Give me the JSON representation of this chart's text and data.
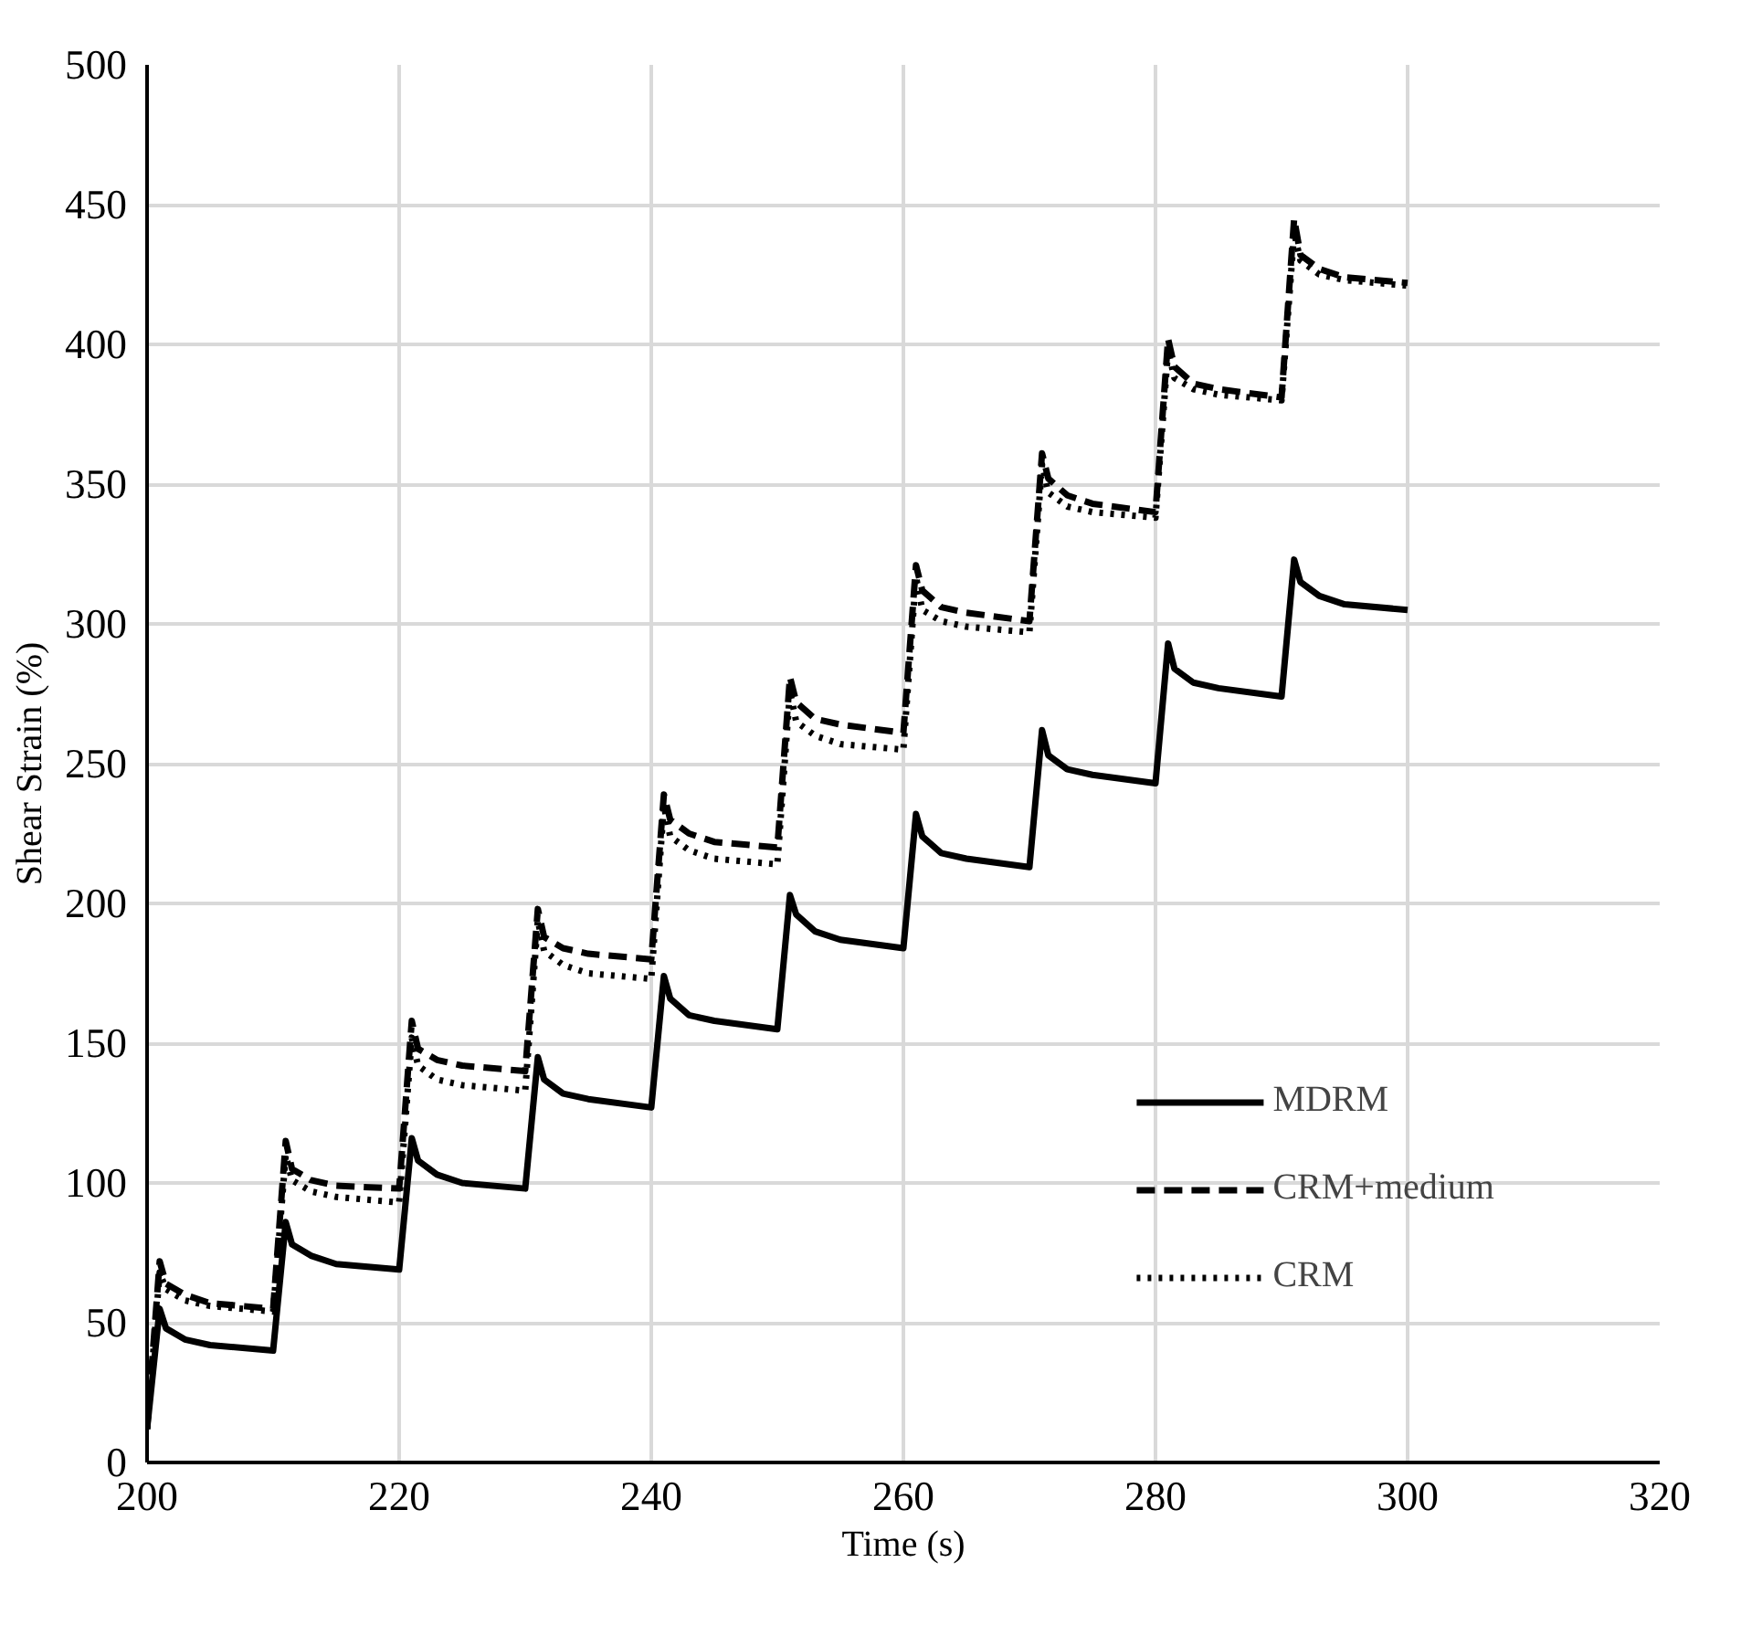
{
  "chart_data": {
    "type": "line",
    "xlabel": "Time (s)",
    "ylabel": "Shear Strain (%)",
    "x": [
      200,
      201,
      201.5,
      203,
      205,
      210,
      211,
      211.5,
      213,
      215,
      220,
      221,
      221.5,
      223,
      225,
      230,
      231,
      231.5,
      233,
      235,
      240,
      241,
      241.5,
      243,
      245,
      250,
      251,
      251.5,
      253,
      255,
      260,
      261,
      261.5,
      263,
      265,
      270,
      271,
      271.5,
      273,
      275,
      280,
      281,
      281.5,
      283,
      285,
      290,
      291,
      291.5,
      293,
      295,
      300
    ],
    "series": [
      {
        "name": "MDRM",
        "color": "#000000",
        "line_style": "solid",
        "values": [
          12,
          55,
          48,
          44,
          42,
          40,
          86,
          78,
          74,
          71,
          69,
          116,
          108,
          103,
          100,
          98,
          145,
          137,
          132,
          130,
          127,
          174,
          166,
          160,
          158,
          155,
          203,
          196,
          190,
          187,
          184,
          232,
          224,
          218,
          216,
          213,
          262,
          253,
          248,
          246,
          243,
          293,
          284,
          279,
          277,
          274,
          323,
          315,
          310,
          307,
          305
        ]
      },
      {
        "name": "CRM+medium",
        "color": "#000000",
        "line_style": "dashed",
        "values": [
          12,
          72,
          64,
          60,
          57,
          55,
          115,
          105,
          101,
          99,
          98,
          158,
          148,
          144,
          142,
          140,
          198,
          188,
          184,
          182,
          180,
          239,
          230,
          225,
          222,
          220,
          281,
          272,
          266,
          264,
          261,
          321,
          312,
          306,
          304,
          301,
          361,
          352,
          346,
          343,
          340,
          402,
          392,
          386,
          384,
          381,
          445,
          432,
          427,
          424,
          422
        ]
      },
      {
        "name": "CRM",
        "color": "#000000",
        "line_style": "dotted",
        "values": [
          12,
          68,
          62,
          58,
          56,
          54,
          110,
          101,
          97,
          95,
          93,
          152,
          142,
          137,
          135,
          133,
          194,
          183,
          178,
          175,
          173,
          235,
          224,
          219,
          216,
          214,
          276,
          265,
          260,
          257,
          255,
          317,
          305,
          301,
          299,
          297,
          357,
          347,
          342,
          340,
          338,
          398,
          388,
          384,
          382,
          380,
          440,
          430,
          425,
          423,
          421
        ]
      }
    ],
    "xlim": [
      200,
      320
    ],
    "xticks": [
      200,
      220,
      240,
      260,
      280,
      300,
      320
    ],
    "ylim": [
      0,
      500
    ],
    "yticks": [
      0,
      50,
      100,
      150,
      200,
      250,
      300,
      350,
      400,
      450,
      500
    ],
    "grid": true,
    "legend": "bottom right",
    "marker": "none"
  }
}
